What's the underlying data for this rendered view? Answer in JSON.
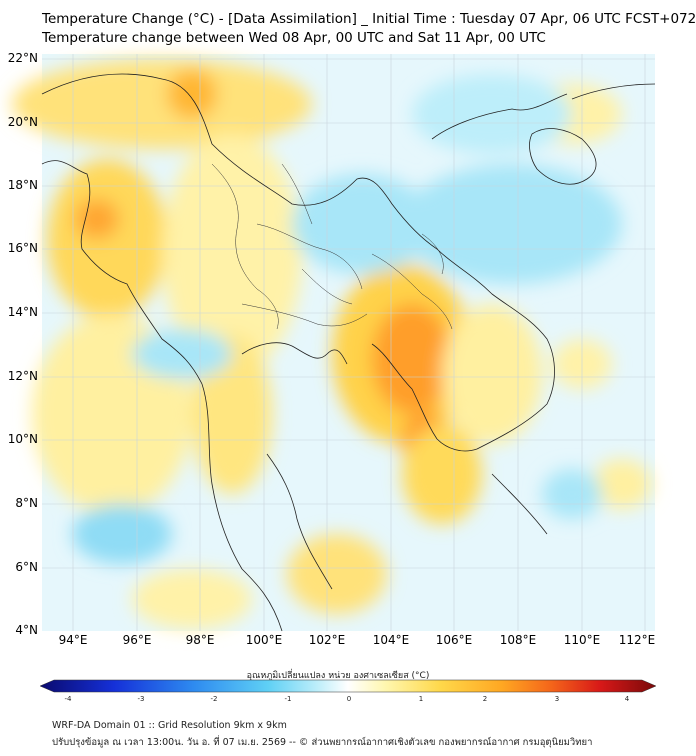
{
  "title_line1": "Temperature Change (°C) - [Data Assimilation] _ Initial Time : Tuesday 07 Apr, 06 UTC FCST+072",
  "title_line2": "Temperature change between Wed 08 Apr, 00 UTC and Sat 11 Apr, 00 UTC",
  "lat_labels": [
    "22°N",
    "20°N",
    "18°N",
    "16°N",
    "14°N",
    "12°N",
    "10°N",
    "8°N",
    "6°N",
    "4°N"
  ],
  "lon_labels": [
    "94°E",
    "96°E",
    "98°E",
    "100°E",
    "102°E",
    "104°E",
    "106°E",
    "108°E",
    "110°E",
    "112°E"
  ],
  "colorbar": {
    "title": "อุณหภูมิเปลี่ยนแปลง หน่วย องศาเซลเซียส (°C)",
    "ticks": [
      "-4",
      "-3",
      "-2",
      "-1",
      "0",
      "1",
      "2",
      "3",
      "4"
    ],
    "colors": [
      "#0a0a6e",
      "#1530d8",
      "#2e8bf0",
      "#5fd0f5",
      "#bdeefa",
      "#ffffff",
      "#fff7b0",
      "#ffd84a",
      "#ffa722",
      "#f4651a",
      "#d71818",
      "#7a0a0a"
    ]
  },
  "footer_line1": "WRF-DA Domain 01 :: Grid Resolution 9km x 9km",
  "footer_line2": "ปรับปรุงข้อมูล ณ เวลา 13:00น. วัน อ. ที่ 07 เม.ย. 2569 -- © ส่วนพยากรณ์อากาศเชิงตัวเลข กองพยากรณ์อากาศ กรมอุตุนิยมวิทยา"
}
